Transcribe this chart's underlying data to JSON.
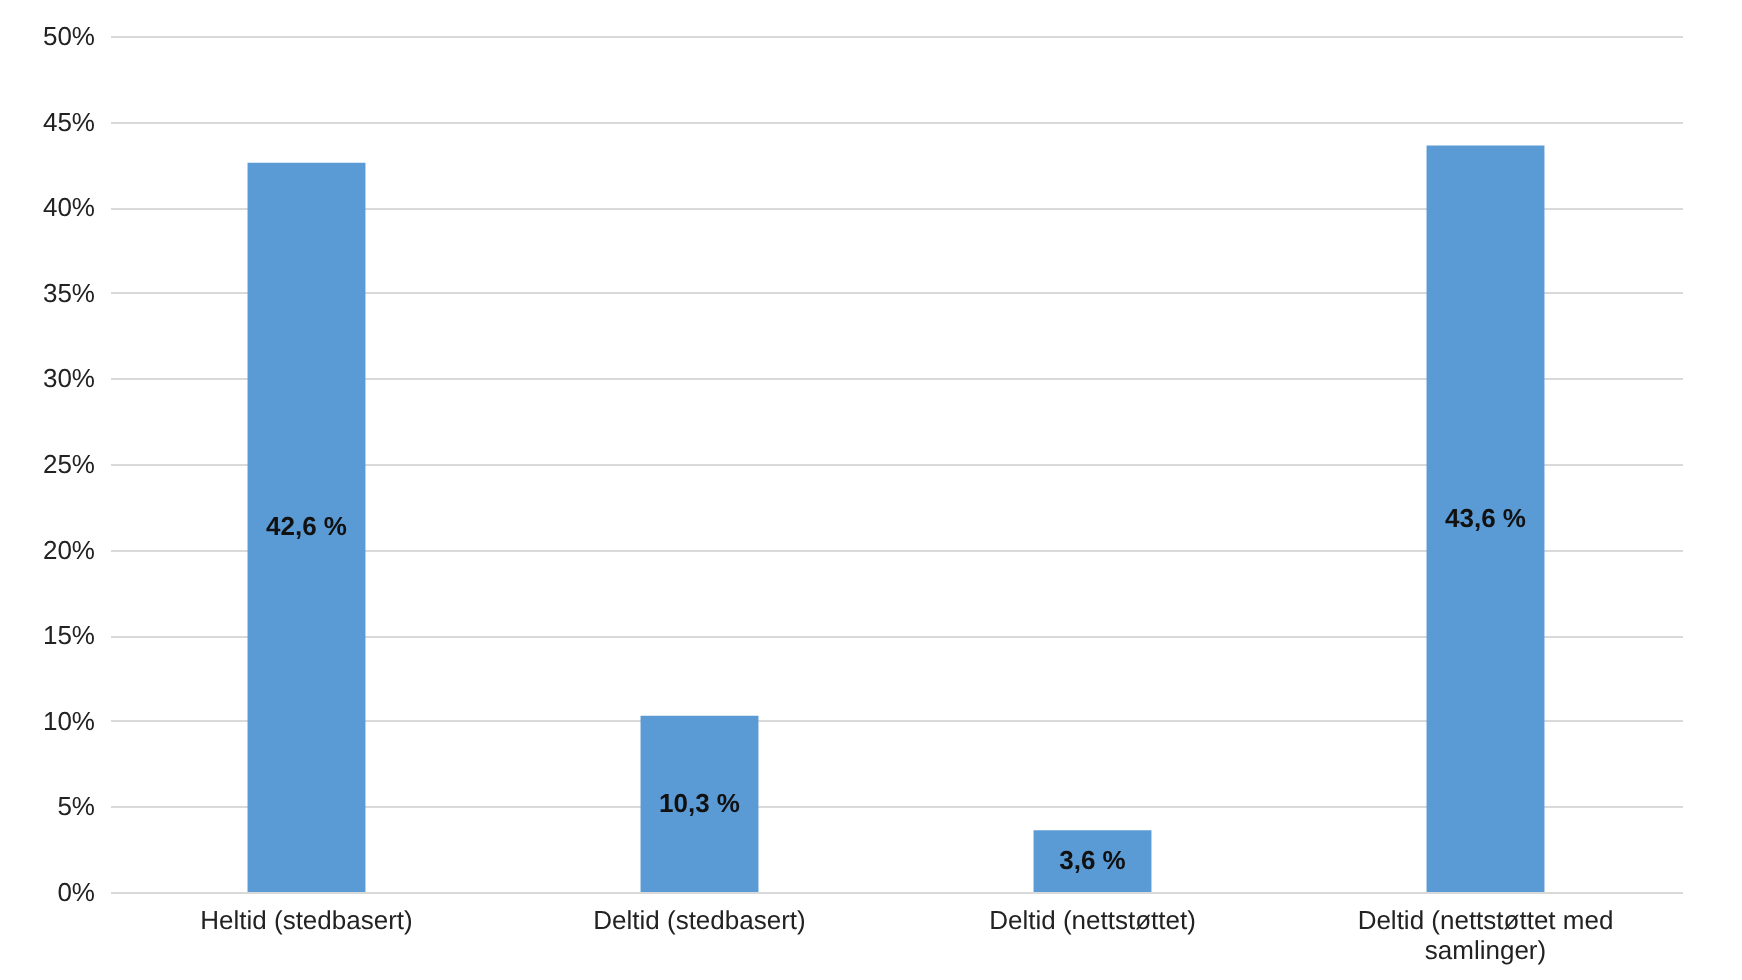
{
  "chart_data": {
    "type": "bar",
    "categories": [
      "Heltid (stedbasert)",
      "Deltid (stedbasert)",
      "Deltid (nettstøttet)",
      "Deltid (nettstøttet med samlinger)"
    ],
    "values": [
      42.6,
      10.3,
      3.6,
      43.6
    ],
    "value_labels": [
      "42,6 %",
      "10,3 %",
      "3,6 %",
      "43,6 %"
    ],
    "color": "#5b9bd5",
    "ylim": [
      0,
      50
    ],
    "yticks": [
      {
        "value": 0,
        "label": "0%"
      },
      {
        "value": 5,
        "label": "5%"
      },
      {
        "value": 10,
        "label": "10%"
      },
      {
        "value": 15,
        "label": "15%"
      },
      {
        "value": 20,
        "label": "20%"
      },
      {
        "value": 25,
        "label": "25%"
      },
      {
        "value": 30,
        "label": "30%"
      },
      {
        "value": 35,
        "label": "35%"
      },
      {
        "value": 40,
        "label": "40%"
      },
      {
        "value": 45,
        "label": "45%"
      },
      {
        "value": 50,
        "label": "50%"
      }
    ],
    "grid": "y"
  }
}
